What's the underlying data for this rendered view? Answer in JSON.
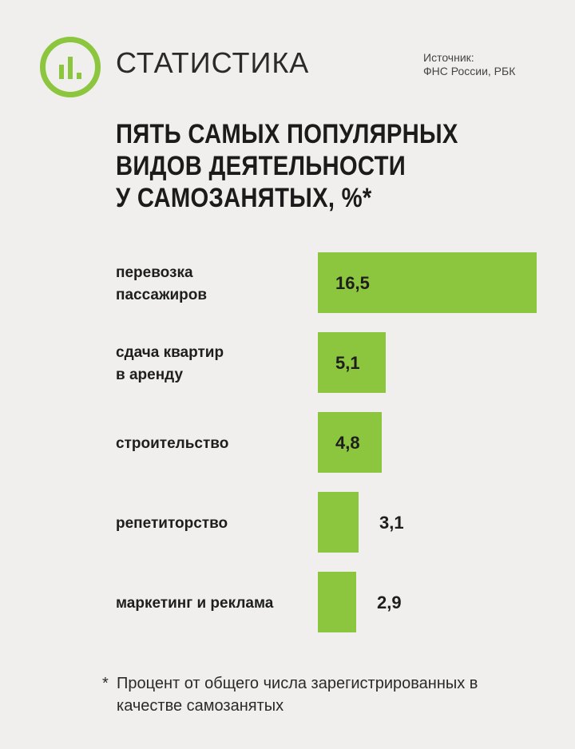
{
  "header": {
    "section_title": "СТАТИСТИКА",
    "source_line1": "Источник:",
    "source_line2": "ФНС России, РБК",
    "logo_icon": "bar-chart-icon"
  },
  "title_lines": [
    "ПЯТЬ САМЫХ ПОПУЛЯРНЫХ",
    "ВИДОВ ДЕЯТЕЛЬНОСТИ",
    "У САМОЗАНЯТЫХ, %*"
  ],
  "footnote": {
    "star": "*",
    "text": "Процент от общего числа зарегистрированных в качестве самозанятых"
  },
  "colors": {
    "accent": "#8cc63f",
    "background": "#f0efed",
    "text": "#1e1e1e"
  },
  "chart_data": {
    "type": "bar",
    "orientation": "horizontal",
    "unit": "%",
    "categories": [
      [
        "перевозка",
        "пассажиров"
      ],
      [
        "сдача квартир",
        "в аренду"
      ],
      [
        "строительство"
      ],
      [
        "репетиторство"
      ],
      [
        "маркетинг и реклама"
      ]
    ],
    "values": [
      16.5,
      5.1,
      4.8,
      3.1,
      2.9
    ],
    "value_labels": [
      "16,5",
      "5,1",
      "4,8",
      "3,1",
      "2,9"
    ],
    "grid": false,
    "legend": "none"
  }
}
